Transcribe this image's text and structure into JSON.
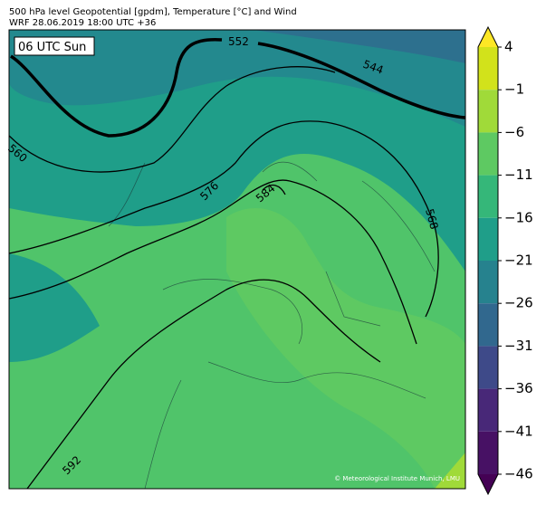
{
  "header": {
    "line1": "500 hPa level Geopotential [gpdm], Temperature [°C] and Wind",
    "line2": "WRF 28.06.2019 18:00 UTC +36"
  },
  "map": {
    "time_label": "06 UTC Sun",
    "contour_labels": [
      "552",
      "544",
      "560",
      "576",
      "584",
      "568",
      "592"
    ],
    "copyright": "© Meteorological Institute Munich, LMU"
  },
  "colorbar": {
    "ticks": [
      {
        "value": 4,
        "label": "4"
      },
      {
        "value": -1,
        "label": "−1"
      },
      {
        "value": -6,
        "label": "−6"
      },
      {
        "value": -11,
        "label": "−11"
      },
      {
        "value": -16,
        "label": "−16"
      },
      {
        "value": -21,
        "label": "−21"
      },
      {
        "value": -26,
        "label": "−26"
      },
      {
        "value": -31,
        "label": "−31"
      },
      {
        "value": -36,
        "label": "−36"
      },
      {
        "value": -41,
        "label": "−41"
      },
      {
        "value": -46,
        "label": "−46"
      }
    ],
    "band_colors": [
      "#d2e21b",
      "#a0da39",
      "#5ec962",
      "#35b779",
      "#1f9e89",
      "#26828e",
      "#31688e",
      "#3e4a89",
      "#482878",
      "#471164"
    ],
    "over_color": "#fde725",
    "under_color": "#440154"
  }
}
